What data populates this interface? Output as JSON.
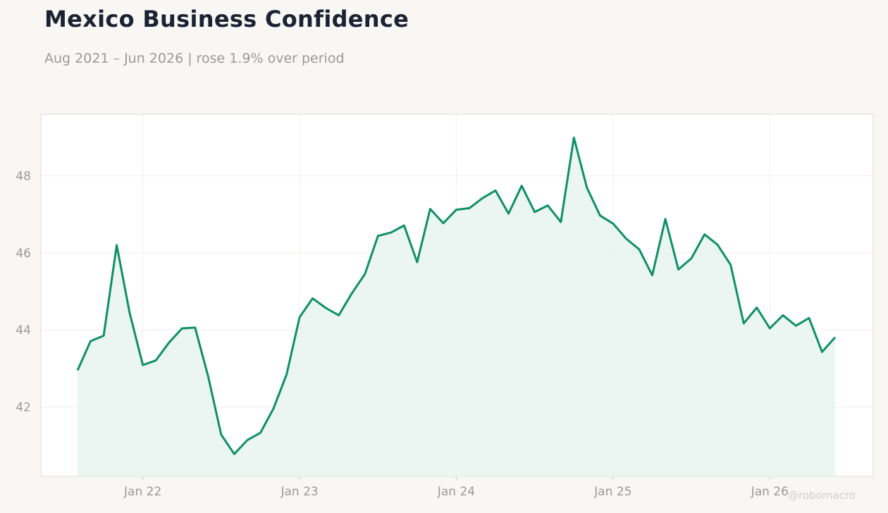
{
  "title": "Mexico Business Confidence",
  "subtitle": "Aug 2021 – Jun 2026 | rose 1.9% over period",
  "watermark": "@robomacro",
  "colors": {
    "background": "#f8f7f4",
    "plot_bg": "#ffffff",
    "line": "#0e9163",
    "fill": "#e9f4ef",
    "grid": "#efeeea",
    "tick_text": "#9a9995",
    "title_text": "#1b2233"
  },
  "chart_data": {
    "type": "area",
    "title": "Mexico Business Confidence",
    "subtitle": "Aug 2021 – Jun 2026 | rose 1.9% over period",
    "xlabel": "",
    "ylabel": "",
    "ylim": [
      40.2,
      49.6
    ],
    "y_ticks": [
      42,
      44,
      46,
      48
    ],
    "x_ticks": [
      {
        "date": "2022-01",
        "label": "Jan 22"
      },
      {
        "date": "2023-01",
        "label": "Jan 23"
      },
      {
        "date": "2024-01",
        "label": "Jan 24"
      },
      {
        "date": "2025-01",
        "label": "Jan 25"
      },
      {
        "date": "2026-01",
        "label": "Jan 26"
      }
    ],
    "grid": true,
    "legend": "none",
    "x": [
      "2021-08",
      "2021-09",
      "2021-10",
      "2021-11",
      "2021-12",
      "2022-01",
      "2022-02",
      "2022-03",
      "2022-04",
      "2022-05",
      "2022-06",
      "2022-07",
      "2022-08",
      "2022-09",
      "2022-10",
      "2022-11",
      "2022-12",
      "2023-01",
      "2023-02",
      "2023-03",
      "2023-04",
      "2023-05",
      "2023-06",
      "2023-07",
      "2023-08",
      "2023-09",
      "2023-10",
      "2023-11",
      "2023-12",
      "2024-01",
      "2024-02",
      "2024-03",
      "2024-04",
      "2024-05",
      "2024-06",
      "2024-07",
      "2024-08",
      "2024-09",
      "2024-10",
      "2024-11",
      "2024-12",
      "2025-01",
      "2025-02",
      "2025-03",
      "2025-04",
      "2025-05",
      "2025-06",
      "2025-07",
      "2025-08",
      "2025-09",
      "2025-10",
      "2025-11",
      "2025-12",
      "2026-01",
      "2026-02",
      "2026-03",
      "2026-04",
      "2026-05",
      "2026-06"
    ],
    "values": [
      42.95,
      43.71,
      43.85,
      46.2,
      44.43,
      43.09,
      43.21,
      43.67,
      44.04,
      44.06,
      42.8,
      41.28,
      40.78,
      41.14,
      41.33,
      41.96,
      42.84,
      44.33,
      44.82,
      44.57,
      44.38,
      44.95,
      45.45,
      46.44,
      46.53,
      46.71,
      45.76,
      47.14,
      46.77,
      47.12,
      47.16,
      47.42,
      47.62,
      47.02,
      47.74,
      47.06,
      47.23,
      46.8,
      48.99,
      47.69,
      46.97,
      46.76,
      46.37,
      46.09,
      45.42,
      46.88,
      45.57,
      45.86,
      46.48,
      46.21,
      45.69,
      44.17,
      44.58,
      44.04,
      44.38,
      44.11,
      44.31,
      43.43,
      43.81
    ]
  }
}
